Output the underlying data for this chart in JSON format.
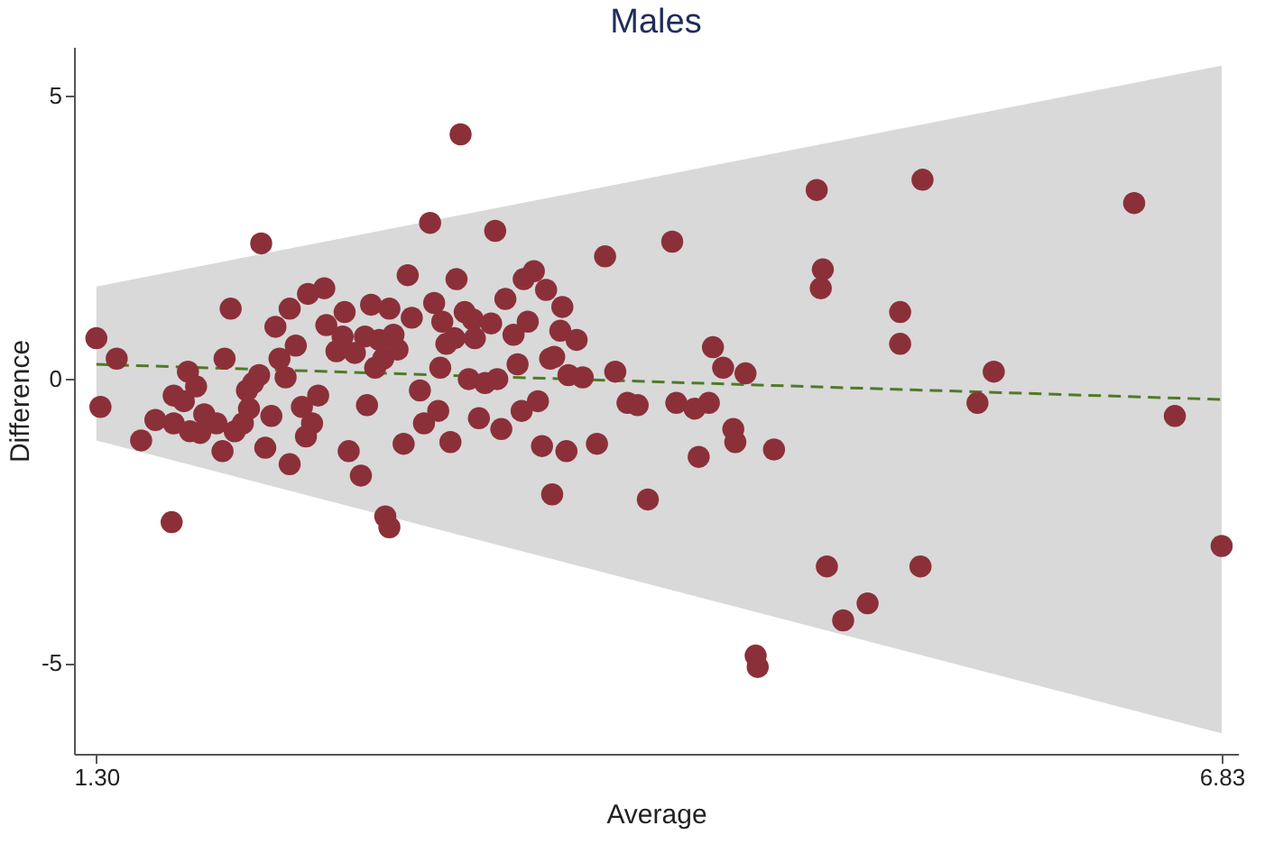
{
  "chart_data": {
    "type": "scatter",
    "title": "Males",
    "xlabel": "Average",
    "ylabel": "Difference",
    "xlim": [
      1.19,
      6.91
    ],
    "ylim": [
      -6.6,
      5.85
    ],
    "xticks": [
      {
        "value": 1.3,
        "label": "1.30"
      },
      {
        "value": 6.83,
        "label": "6.83"
      }
    ],
    "yticks": [
      -5,
      0,
      5
    ],
    "grid": false,
    "series": [
      {
        "marker": "circle",
        "color": "#8b3039",
        "x": [
          1.3,
          1.32,
          1.4,
          1.52,
          1.59,
          1.67,
          1.68,
          1.68,
          1.73,
          1.75,
          1.76,
          1.79,
          1.81,
          1.83,
          1.89,
          1.92,
          1.93,
          1.96,
          1.98,
          2.02,
          2.04,
          2.05,
          2.07,
          2.1,
          2.11,
          2.13,
          2.16,
          2.18,
          2.2,
          2.23,
          2.25,
          2.25,
          2.28,
          2.31,
          2.33,
          2.34,
          2.36,
          2.39,
          2.42,
          2.43,
          2.48,
          2.51,
          2.52,
          2.54,
          2.57,
          2.6,
          2.62,
          2.63,
          2.65,
          2.67,
          2.69,
          2.71,
          2.72,
          2.74,
          2.74,
          2.76,
          2.78,
          2.81,
          2.83,
          2.85,
          2.89,
          2.91,
          2.94,
          2.96,
          2.98,
          2.99,
          3.0,
          3.02,
          3.04,
          3.06,
          3.07,
          3.09,
          3.11,
          3.13,
          3.15,
          3.16,
          3.18,
          3.21,
          3.24,
          3.26,
          3.27,
          3.29,
          3.31,
          3.35,
          3.37,
          3.39,
          3.4,
          3.42,
          3.45,
          3.47,
          3.49,
          3.51,
          3.53,
          3.54,
          3.55,
          3.58,
          3.59,
          3.61,
          3.62,
          3.66,
          3.69,
          3.76,
          3.8,
          3.85,
          3.91,
          3.96,
          4.01,
          4.13,
          4.15,
          4.24,
          4.26,
          4.31,
          4.33,
          4.38,
          4.43,
          4.44,
          4.49,
          4.54,
          4.55,
          4.63,
          4.84,
          4.87,
          4.86,
          4.89,
          4.97,
          5.09,
          5.25,
          5.25,
          5.36,
          5.35,
          5.71,
          5.63,
          6.4,
          6.6,
          6.83
        ],
        "values": [
          0.72,
          -0.49,
          0.36,
          -1.08,
          -0.72,
          -2.52,
          -0.78,
          -0.29,
          -0.39,
          0.13,
          -0.92,
          -0.13,
          -0.95,
          -0.62,
          -0.78,
          -1.27,
          0.36,
          1.24,
          -0.92,
          -0.78,
          -0.2,
          -0.52,
          -0.07,
          0.07,
          2.39,
          -1.21,
          -0.65,
          0.92,
          0.36,
          0.03,
          -1.5,
          1.24,
          0.59,
          -0.49,
          -1.01,
          1.5,
          -0.78,
          -0.29,
          1.6,
          0.95,
          0.49,
          0.75,
          1.18,
          -1.27,
          0.46,
          -1.7,
          0.75,
          -0.46,
          1.31,
          0.2,
          0.69,
          0.36,
          -2.42,
          1.24,
          -2.61,
          0.78,
          0.52,
          -1.14,
          1.83,
          1.08,
          -0.2,
          -0.78,
          2.75,
          1.34,
          -0.56,
          0.2,
          1.01,
          0.62,
          -1.11,
          0.72,
          1.76,
          4.31,
          1.18,
          0.0,
          1.05,
          0.72,
          -0.69,
          -0.07,
          0.98,
          2.61,
          0.0,
          -0.88,
          1.41,
          0.78,
          0.26,
          -0.56,
          1.76,
          1.01,
          1.9,
          -0.39,
          -1.18,
          1.57,
          0.36,
          -2.03,
          0.39,
          0.85,
          1.27,
          -1.27,
          0.07,
          0.69,
          0.03,
          -1.14,
          2.16,
          0.13,
          -0.42,
          -0.46,
          -2.12,
          2.42,
          -0.42,
          -0.52,
          -1.37,
          -0.42,
          0.56,
          0.2,
          -0.88,
          -1.11,
          0.1,
          -4.87,
          -5.07,
          -1.24,
          3.33,
          1.93,
          1.6,
          -3.3,
          -4.25,
          -3.95,
          1.18,
          0.62,
          3.51,
          -3.3,
          0.13,
          -0.42,
          3.1,
          -0.65,
          -2.94
        ]
      },
      {
        "type": "line",
        "marker": "none",
        "color": "#4f7a28",
        "line_style": "dashed",
        "x": [
          1.3,
          6.83
        ],
        "values": [
          0.26,
          -0.36
        ],
        "lower": [
          -1.08,
          -6.24
        ],
        "upper": [
          1.63,
          5.52
        ]
      }
    ]
  }
}
